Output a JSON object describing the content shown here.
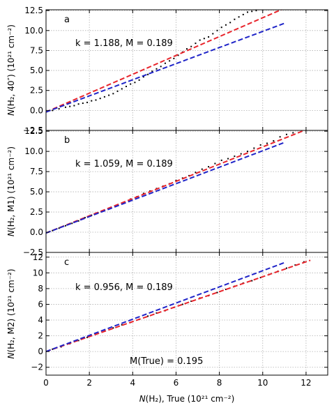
{
  "chart_data": [
    {
      "type": "scatter",
      "panel_label": "a",
      "ylabel": "N(H₂, 40″) (10²¹ cm⁻²)",
      "ylabel_parts": {
        "italic": "N",
        "rest": "(H₂,  40″) (10²¹ cm⁻²)"
      },
      "annotation": "k = 1.188,  M = 0.189",
      "xlim": [
        0,
        13
      ],
      "ylim": [
        -2.5,
        12.6
      ],
      "yticks": [
        -2.5,
        0.0,
        2.5,
        5.0,
        7.5,
        10.0,
        12.5
      ],
      "ytick_labels": [
        "−2.5",
        "0.0",
        "2.5",
        "5.0",
        "7.5",
        "10.0",
        "12.5"
      ],
      "grid": true,
      "scatter_color": "#000000",
      "scatter_points": [
        [
          0.3,
          0.0
        ],
        [
          0.6,
          0.2
        ],
        [
          0.9,
          0.4
        ],
        [
          1.1,
          0.5
        ],
        [
          1.3,
          0.6
        ],
        [
          1.5,
          0.8
        ],
        [
          1.7,
          0.9
        ],
        [
          1.9,
          1.0
        ],
        [
          2.1,
          1.2
        ],
        [
          2.3,
          1.3
        ],
        [
          2.5,
          1.5
        ],
        [
          2.7,
          1.7
        ],
        [
          2.9,
          1.9
        ],
        [
          3.1,
          2.1
        ],
        [
          3.3,
          2.4
        ],
        [
          3.5,
          2.7
        ],
        [
          3.7,
          3.0
        ],
        [
          3.9,
          3.3
        ],
        [
          4.1,
          3.5
        ],
        [
          4.3,
          3.8
        ],
        [
          4.5,
          4.2
        ],
        [
          4.7,
          4.5
        ],
        [
          4.9,
          4.9
        ],
        [
          5.1,
          5.2
        ],
        [
          5.3,
          5.5
        ],
        [
          5.5,
          5.9
        ],
        [
          5.7,
          6.2
        ],
        [
          5.9,
          6.5
        ],
        [
          6.1,
          6.9
        ],
        [
          6.3,
          7.3
        ],
        [
          6.5,
          7.7
        ],
        [
          6.7,
          8.0
        ],
        [
          6.9,
          8.4
        ],
        [
          7.1,
          8.8
        ],
        [
          7.3,
          9.0
        ],
        [
          7.5,
          9.2
        ],
        [
          7.7,
          9.6
        ],
        [
          7.9,
          10.0
        ],
        [
          8.1,
          10.4
        ],
        [
          8.3,
          10.7
        ],
        [
          8.5,
          11.0
        ],
        [
          8.7,
          11.4
        ],
        [
          8.9,
          11.7
        ],
        [
          9.1,
          12.0
        ],
        [
          9.3,
          12.3
        ],
        [
          9.5,
          12.4
        ],
        [
          9.7,
          12.5
        ]
      ],
      "lines": [
        {
          "color": "#e8242b",
          "points": [
            [
              0,
              -0.2
            ],
            [
              11.1,
              12.9
            ]
          ]
        },
        {
          "color": "#1f24c8",
          "points": [
            [
              0,
              -0.2
            ],
            [
              11.0,
              10.9
            ]
          ]
        }
      ]
    },
    {
      "type": "scatter",
      "panel_label": "b",
      "ylabel": "N(H₂, M1) (10²¹ cm⁻²)",
      "ylabel_parts": {
        "italic": "N",
        "rest": "(H₂,  M1) (10²¹ cm⁻²)"
      },
      "annotation": "k = 1.059,  M = 0.189",
      "xlim": [
        0,
        13
      ],
      "ylim": [
        -2.5,
        12.6
      ],
      "yticks": [
        -2.5,
        0.0,
        2.5,
        5.0,
        7.5,
        10.0,
        12.5
      ],
      "ytick_labels": [
        "−2.5",
        "0.0",
        "2.5",
        "5.0",
        "7.5",
        "10.0",
        "12.5"
      ],
      "grid": true,
      "scatter_color": "#000000",
      "scatter_points": [
        [
          0.3,
          0.2
        ],
        [
          0.6,
          0.5
        ],
        [
          0.9,
          0.8
        ],
        [
          1.2,
          1.1
        ],
        [
          1.5,
          1.4
        ],
        [
          1.8,
          1.8
        ],
        [
          2.1,
          2.1
        ],
        [
          2.4,
          2.4
        ],
        [
          2.7,
          2.7
        ],
        [
          3.0,
          3.0
        ],
        [
          3.3,
          3.3
        ],
        [
          3.6,
          3.7
        ],
        [
          3.9,
          4.1
        ],
        [
          4.2,
          4.4
        ],
        [
          4.5,
          4.8
        ],
        [
          4.8,
          5.1
        ],
        [
          5.1,
          5.4
        ],
        [
          5.4,
          5.7
        ],
        [
          5.7,
          6.0
        ],
        [
          6.0,
          6.4
        ],
        [
          6.3,
          6.7
        ],
        [
          6.6,
          7.0
        ],
        [
          6.9,
          7.4
        ],
        [
          7.2,
          7.8
        ],
        [
          7.5,
          8.1
        ],
        [
          7.8,
          8.5
        ],
        [
          8.1,
          8.9
        ],
        [
          8.4,
          9.1
        ],
        [
          8.7,
          9.4
        ],
        [
          9.0,
          9.7
        ],
        [
          9.3,
          10.0
        ],
        [
          9.6,
          10.4
        ],
        [
          9.9,
          10.8
        ],
        [
          10.2,
          11.0
        ],
        [
          10.5,
          11.3
        ],
        [
          10.8,
          11.8
        ],
        [
          11.1,
          12.1
        ],
        [
          11.4,
          12.3
        ]
      ],
      "lines": [
        {
          "color": "#e8242b",
          "points": [
            [
              0,
              -0.1
            ],
            [
              12.2,
              12.9
            ]
          ]
        },
        {
          "color": "#1f24c8",
          "points": [
            [
              0,
              -0.1
            ],
            [
              11.0,
              11.1
            ]
          ]
        }
      ]
    },
    {
      "type": "scatter",
      "panel_label": "c",
      "ylabel": "N(H₂, M2) (10²¹ cm⁻²)",
      "ylabel_parts": {
        "italic": "N",
        "rest": "(H₂,  M2) (10²¹ cm⁻²)"
      },
      "annotation": "k = 0.956,  M = 0.189",
      "annotation2": "M(True) = 0.195",
      "xlim": [
        0,
        13
      ],
      "ylim": [
        -3.0,
        12.6
      ],
      "yticks": [
        -2,
        0,
        2,
        4,
        6,
        8,
        10,
        12
      ],
      "ytick_labels": [
        "−2",
        "0",
        "2",
        "4",
        "6",
        "8",
        "10",
        "12"
      ],
      "xticks": [
        0,
        2,
        4,
        6,
        8,
        10,
        12
      ],
      "xtick_labels": [
        "0",
        "2",
        "4",
        "6",
        "8",
        "10",
        "12"
      ],
      "xlabel": "N(H₂),  True (10²¹ cm⁻²)",
      "xlabel_parts": {
        "italic": "N",
        "rest": "(H₂),  True (10²¹ cm⁻²)"
      },
      "grid": true,
      "scatter_color": "#000000",
      "scatter_points": [
        [
          0.3,
          0.3
        ],
        [
          0.7,
          0.6
        ],
        [
          1.1,
          1.0
        ],
        [
          1.5,
          1.4
        ],
        [
          1.9,
          1.8
        ],
        [
          2.3,
          2.2
        ],
        [
          2.7,
          2.6
        ],
        [
          3.1,
          3.0
        ],
        [
          3.5,
          3.4
        ],
        [
          3.9,
          3.7
        ],
        [
          4.3,
          4.1
        ],
        [
          4.7,
          4.5
        ],
        [
          5.1,
          4.9
        ],
        [
          5.5,
          5.2
        ],
        [
          5.9,
          5.6
        ],
        [
          6.3,
          6.0
        ],
        [
          6.7,
          6.4
        ],
        [
          7.1,
          6.8
        ],
        [
          7.5,
          7.1
        ],
        [
          7.9,
          7.5
        ],
        [
          8.3,
          7.9
        ],
        [
          8.7,
          8.3
        ],
        [
          9.1,
          8.7
        ],
        [
          9.5,
          9.0
        ],
        [
          9.9,
          9.4
        ],
        [
          10.3,
          9.8
        ],
        [
          10.7,
          10.2
        ],
        [
          11.1,
          10.6
        ],
        [
          11.5,
          11.0
        ],
        [
          11.9,
          11.4
        ]
      ],
      "lines": [
        {
          "color": "#e8242b",
          "points": [
            [
              0,
              0.0
            ],
            [
              12.2,
              11.6
            ]
          ]
        },
        {
          "color": "#1f24c8",
          "points": [
            [
              0,
              0.0
            ],
            [
              11.0,
              11.3
            ]
          ]
        }
      ]
    }
  ]
}
